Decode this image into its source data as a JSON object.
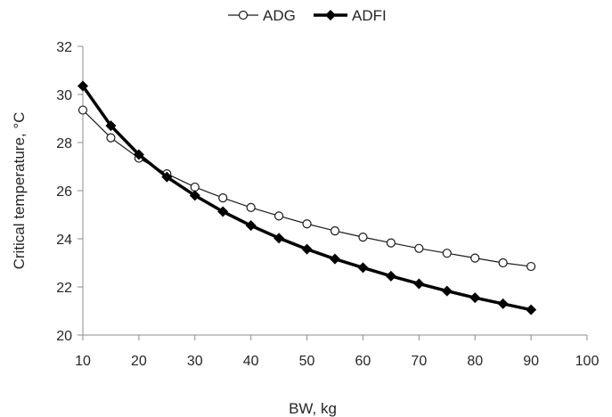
{
  "chart_data": {
    "type": "line",
    "title": "",
    "xlabel": "BW, kg",
    "ylabel": "Critical temperature, °C",
    "xlim": [
      10,
      100
    ],
    "ylim": [
      20,
      32
    ],
    "xticks": [
      "10",
      "20",
      "30",
      "40",
      "50",
      "60",
      "70",
      "80",
      "90",
      "100"
    ],
    "yticks": [
      "20",
      "22",
      "24",
      "26",
      "28",
      "30",
      "32"
    ],
    "grid": false,
    "legend_position": "top-center",
    "x": [
      10,
      15,
      20,
      25,
      30,
      35,
      40,
      45,
      50,
      55,
      60,
      65,
      70,
      75,
      80,
      85,
      90
    ],
    "series": [
      {
        "name": "ADG",
        "marker": "open-circle",
        "color": "#1a1a1a",
        "values": [
          29.35,
          28.2,
          27.35,
          26.7,
          26.15,
          25.7,
          25.3,
          24.95,
          24.62,
          24.33,
          24.07,
          23.83,
          23.6,
          23.4,
          23.2,
          23.0,
          22.85
        ]
      },
      {
        "name": "ADFI",
        "marker": "filled-diamond",
        "color": "#000000",
        "values": [
          30.35,
          28.7,
          27.5,
          26.57,
          25.8,
          25.13,
          24.55,
          24.03,
          23.57,
          23.16,
          22.8,
          22.45,
          22.13,
          21.83,
          21.55,
          21.3,
          21.05
        ]
      }
    ]
  }
}
